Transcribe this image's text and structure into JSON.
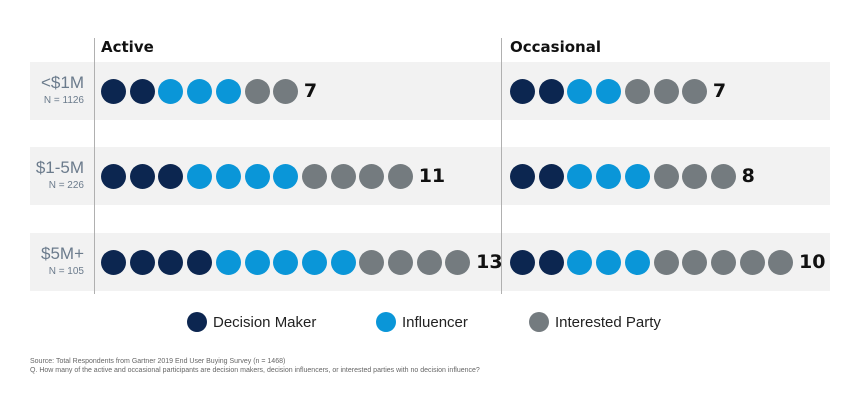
{
  "chart_data": {
    "type": "dot-matrix",
    "column_headers": [
      "Active",
      "Occasional"
    ],
    "rows": [
      {
        "label": "<$1M",
        "n": "N = 1126",
        "active": {
          "decision_maker": 2,
          "influencer": 3,
          "interested_party": 2,
          "total": 7
        },
        "occasional": {
          "decision_maker": 2,
          "influencer": 2,
          "interested_party": 3,
          "total": 7
        }
      },
      {
        "label": "$1-5M",
        "n": "N = 226",
        "active": {
          "decision_maker": 3,
          "influencer": 4,
          "interested_party": 4,
          "total": 11
        },
        "occasional": {
          "decision_maker": 2,
          "influencer": 3,
          "interested_party": 3,
          "total": 8
        }
      },
      {
        "label": "$5M+",
        "n": "N = 105",
        "active": {
          "decision_maker": 4,
          "influencer": 5,
          "interested_party": 4,
          "total": 13
        },
        "occasional": {
          "decision_maker": 2,
          "influencer": 3,
          "interested_party": 5,
          "total": 10
        }
      }
    ],
    "legend": [
      {
        "key": "decision_maker",
        "label": "Decision Maker",
        "color": "#0c2650"
      },
      {
        "key": "influencer",
        "label": "Influencer",
        "color": "#0a96d8"
      },
      {
        "key": "interested_party",
        "label": "Interested Party",
        "color": "#747b7f"
      }
    ]
  },
  "footnote": {
    "source": "Source: Total Respondents from Gartner 2019 End User Buying Survey (n = 1468)",
    "question": "Q. How many of the active and occasional participants are decision makers, decision influencers, or interested parties with no decision influence?"
  }
}
